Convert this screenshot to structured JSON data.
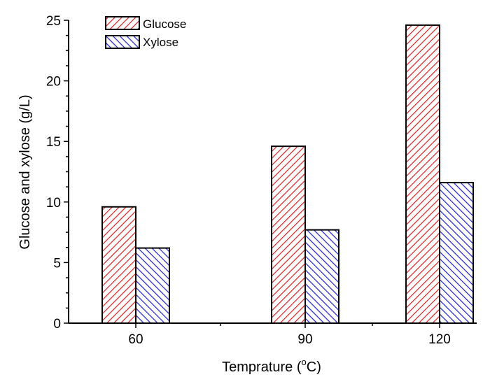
{
  "chart_data": {
    "type": "bar",
    "categories": [
      "60",
      "90",
      "120"
    ],
    "series": [
      {
        "name": "Glucose",
        "values": [
          9.6,
          null,
          24.6
        ],
        "color": "#d62020",
        "pattern": "diagonal-up"
      },
      {
        "name": "Xylose",
        "values": [
          6.2,
          null,
          11.6
        ],
        "color": "#1f1fc8",
        "pattern": "diagonal-down"
      }
    ],
    "extra_bars": [
      {
        "category": "90",
        "series": "Glucose",
        "value": 14.6
      },
      {
        "category": "90",
        "series": "Xylose",
        "value": 7.7
      }
    ],
    "title": "",
    "xlabel_main": "Temprature (",
    "xlabel_sup": "o",
    "xlabel_end": "C)",
    "ylabel": "Glucose and xylose (g/L)",
    "ylim": [
      0,
      25
    ],
    "yticks": [
      "0",
      "5",
      "10",
      "15",
      "20",
      "25"
    ],
    "legend_position": "top-left"
  }
}
